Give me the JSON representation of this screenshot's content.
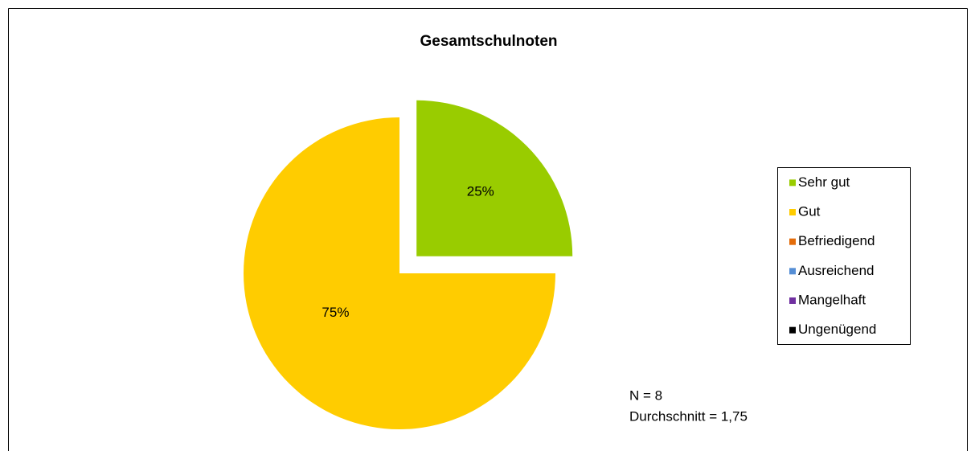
{
  "chart_data": {
    "type": "pie",
    "title": "Gesamtschulnoten",
    "categories": [
      "Sehr gut",
      "Gut",
      "Befriedigend",
      "Ausreichend",
      "Mangelhaft",
      "Ungenügend"
    ],
    "values": [
      25,
      75,
      0,
      0,
      0,
      0
    ],
    "value_labels": [
      "25%",
      "75%",
      null,
      null,
      null,
      null
    ],
    "colors": [
      "#99cc00",
      "#ffcc00",
      "#e36c0a",
      "#558ed5",
      "#7030a0",
      "#000000"
    ],
    "annotations": [
      "N = 8",
      "Durchschnitt = 1,75"
    ],
    "legend": "right"
  }
}
